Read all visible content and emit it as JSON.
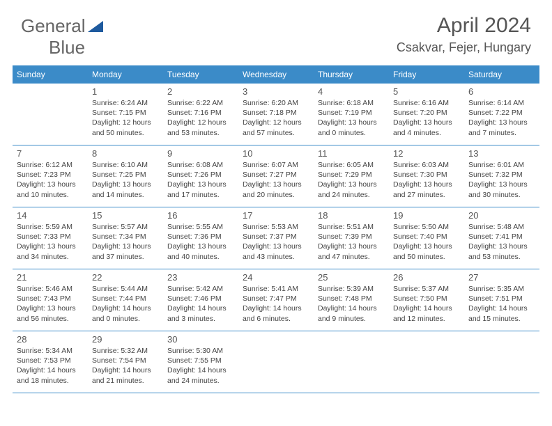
{
  "logo": {
    "text1": "General",
    "text2": "Blue"
  },
  "title": "April 2024",
  "location": "Csakvar, Fejer, Hungary",
  "colors": {
    "header_bg": "#3b8bc8",
    "header_text": "#ffffff",
    "divider": "#3b8bc8",
    "text": "#444444",
    "daynum": "#555555"
  },
  "day_names": [
    "Sunday",
    "Monday",
    "Tuesday",
    "Wednesday",
    "Thursday",
    "Friday",
    "Saturday"
  ],
  "weeks": [
    [
      {
        "n": "",
        "sr": "",
        "ss": "",
        "d1": "",
        "d2": ""
      },
      {
        "n": "1",
        "sr": "Sunrise: 6:24 AM",
        "ss": "Sunset: 7:15 PM",
        "d1": "Daylight: 12 hours",
        "d2": "and 50 minutes."
      },
      {
        "n": "2",
        "sr": "Sunrise: 6:22 AM",
        "ss": "Sunset: 7:16 PM",
        "d1": "Daylight: 12 hours",
        "d2": "and 53 minutes."
      },
      {
        "n": "3",
        "sr": "Sunrise: 6:20 AM",
        "ss": "Sunset: 7:18 PM",
        "d1": "Daylight: 12 hours",
        "d2": "and 57 minutes."
      },
      {
        "n": "4",
        "sr": "Sunrise: 6:18 AM",
        "ss": "Sunset: 7:19 PM",
        "d1": "Daylight: 13 hours",
        "d2": "and 0 minutes."
      },
      {
        "n": "5",
        "sr": "Sunrise: 6:16 AM",
        "ss": "Sunset: 7:20 PM",
        "d1": "Daylight: 13 hours",
        "d2": "and 4 minutes."
      },
      {
        "n": "6",
        "sr": "Sunrise: 6:14 AM",
        "ss": "Sunset: 7:22 PM",
        "d1": "Daylight: 13 hours",
        "d2": "and 7 minutes."
      }
    ],
    [
      {
        "n": "7",
        "sr": "Sunrise: 6:12 AM",
        "ss": "Sunset: 7:23 PM",
        "d1": "Daylight: 13 hours",
        "d2": "and 10 minutes."
      },
      {
        "n": "8",
        "sr": "Sunrise: 6:10 AM",
        "ss": "Sunset: 7:25 PM",
        "d1": "Daylight: 13 hours",
        "d2": "and 14 minutes."
      },
      {
        "n": "9",
        "sr": "Sunrise: 6:08 AM",
        "ss": "Sunset: 7:26 PM",
        "d1": "Daylight: 13 hours",
        "d2": "and 17 minutes."
      },
      {
        "n": "10",
        "sr": "Sunrise: 6:07 AM",
        "ss": "Sunset: 7:27 PM",
        "d1": "Daylight: 13 hours",
        "d2": "and 20 minutes."
      },
      {
        "n": "11",
        "sr": "Sunrise: 6:05 AM",
        "ss": "Sunset: 7:29 PM",
        "d1": "Daylight: 13 hours",
        "d2": "and 24 minutes."
      },
      {
        "n": "12",
        "sr": "Sunrise: 6:03 AM",
        "ss": "Sunset: 7:30 PM",
        "d1": "Daylight: 13 hours",
        "d2": "and 27 minutes."
      },
      {
        "n": "13",
        "sr": "Sunrise: 6:01 AM",
        "ss": "Sunset: 7:32 PM",
        "d1": "Daylight: 13 hours",
        "d2": "and 30 minutes."
      }
    ],
    [
      {
        "n": "14",
        "sr": "Sunrise: 5:59 AM",
        "ss": "Sunset: 7:33 PM",
        "d1": "Daylight: 13 hours",
        "d2": "and 34 minutes."
      },
      {
        "n": "15",
        "sr": "Sunrise: 5:57 AM",
        "ss": "Sunset: 7:34 PM",
        "d1": "Daylight: 13 hours",
        "d2": "and 37 minutes."
      },
      {
        "n": "16",
        "sr": "Sunrise: 5:55 AM",
        "ss": "Sunset: 7:36 PM",
        "d1": "Daylight: 13 hours",
        "d2": "and 40 minutes."
      },
      {
        "n": "17",
        "sr": "Sunrise: 5:53 AM",
        "ss": "Sunset: 7:37 PM",
        "d1": "Daylight: 13 hours",
        "d2": "and 43 minutes."
      },
      {
        "n": "18",
        "sr": "Sunrise: 5:51 AM",
        "ss": "Sunset: 7:39 PM",
        "d1": "Daylight: 13 hours",
        "d2": "and 47 minutes."
      },
      {
        "n": "19",
        "sr": "Sunrise: 5:50 AM",
        "ss": "Sunset: 7:40 PM",
        "d1": "Daylight: 13 hours",
        "d2": "and 50 minutes."
      },
      {
        "n": "20",
        "sr": "Sunrise: 5:48 AM",
        "ss": "Sunset: 7:41 PM",
        "d1": "Daylight: 13 hours",
        "d2": "and 53 minutes."
      }
    ],
    [
      {
        "n": "21",
        "sr": "Sunrise: 5:46 AM",
        "ss": "Sunset: 7:43 PM",
        "d1": "Daylight: 13 hours",
        "d2": "and 56 minutes."
      },
      {
        "n": "22",
        "sr": "Sunrise: 5:44 AM",
        "ss": "Sunset: 7:44 PM",
        "d1": "Daylight: 14 hours",
        "d2": "and 0 minutes."
      },
      {
        "n": "23",
        "sr": "Sunrise: 5:42 AM",
        "ss": "Sunset: 7:46 PM",
        "d1": "Daylight: 14 hours",
        "d2": "and 3 minutes."
      },
      {
        "n": "24",
        "sr": "Sunrise: 5:41 AM",
        "ss": "Sunset: 7:47 PM",
        "d1": "Daylight: 14 hours",
        "d2": "and 6 minutes."
      },
      {
        "n": "25",
        "sr": "Sunrise: 5:39 AM",
        "ss": "Sunset: 7:48 PM",
        "d1": "Daylight: 14 hours",
        "d2": "and 9 minutes."
      },
      {
        "n": "26",
        "sr": "Sunrise: 5:37 AM",
        "ss": "Sunset: 7:50 PM",
        "d1": "Daylight: 14 hours",
        "d2": "and 12 minutes."
      },
      {
        "n": "27",
        "sr": "Sunrise: 5:35 AM",
        "ss": "Sunset: 7:51 PM",
        "d1": "Daylight: 14 hours",
        "d2": "and 15 minutes."
      }
    ],
    [
      {
        "n": "28",
        "sr": "Sunrise: 5:34 AM",
        "ss": "Sunset: 7:53 PM",
        "d1": "Daylight: 14 hours",
        "d2": "and 18 minutes."
      },
      {
        "n": "29",
        "sr": "Sunrise: 5:32 AM",
        "ss": "Sunset: 7:54 PM",
        "d1": "Daylight: 14 hours",
        "d2": "and 21 minutes."
      },
      {
        "n": "30",
        "sr": "Sunrise: 5:30 AM",
        "ss": "Sunset: 7:55 PM",
        "d1": "Daylight: 14 hours",
        "d2": "and 24 minutes."
      },
      {
        "n": "",
        "sr": "",
        "ss": "",
        "d1": "",
        "d2": ""
      },
      {
        "n": "",
        "sr": "",
        "ss": "",
        "d1": "",
        "d2": ""
      },
      {
        "n": "",
        "sr": "",
        "ss": "",
        "d1": "",
        "d2": ""
      },
      {
        "n": "",
        "sr": "",
        "ss": "",
        "d1": "",
        "d2": ""
      }
    ]
  ]
}
